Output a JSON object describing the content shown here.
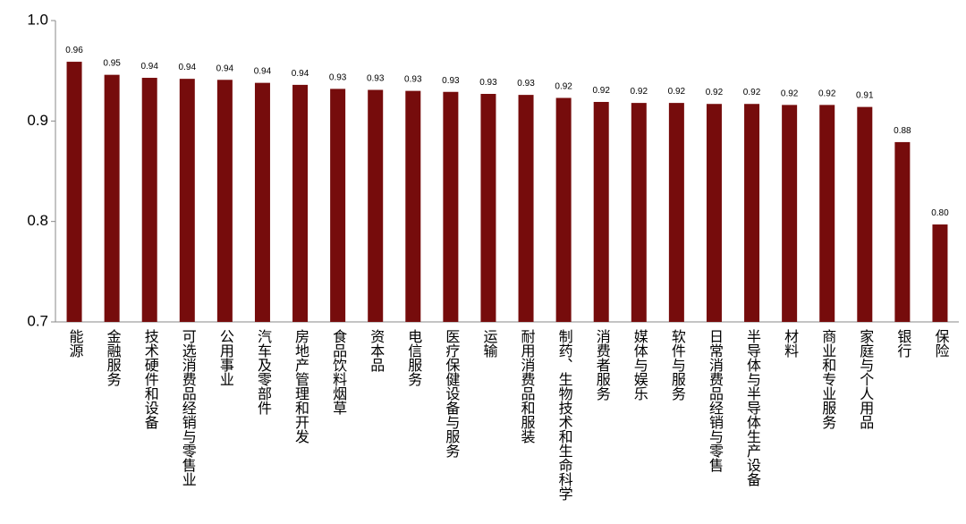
{
  "chart_data": {
    "type": "bar",
    "categories": [
      "能源",
      "金融服务",
      "技术硬件和设备",
      "可选消费品经销与零售业",
      "公用事业",
      "汽车及零部件",
      "房地产管理和开发",
      "食品饮料烟草",
      "资本品",
      "电信服务",
      "医疗保健设备与服务",
      "运输",
      "耐用消费品和服装",
      "制药、生物技术和生命科学",
      "消费者服务",
      "媒体与娱乐",
      "软件与服务",
      "日常消费品经销与零售",
      "半导体与半导体生产设备",
      "材料",
      "商业和专业服务",
      "家庭与个人用品",
      "银行",
      "保险"
    ],
    "values": [
      0.959,
      0.946,
      0.943,
      0.942,
      0.941,
      0.938,
      0.936,
      0.932,
      0.931,
      0.93,
      0.929,
      0.927,
      0.926,
      0.923,
      0.919,
      0.918,
      0.918,
      0.917,
      0.917,
      0.916,
      0.916,
      0.914,
      0.879,
      0.797
    ],
    "value_labels": [
      "0.96",
      "0.95",
      "0.94",
      "0.94",
      "0.94",
      "0.94",
      "0.94",
      "0.93",
      "0.93",
      "0.93",
      "0.93",
      "0.93",
      "0.93",
      "0.92",
      "0.92",
      "0.92",
      "0.92",
      "0.92",
      "0.92",
      "0.92",
      "0.92",
      "0.91",
      "0.88",
      "0.80"
    ],
    "color": "#760c0c",
    "ylim": [
      0.7,
      1.0
    ],
    "yticks": [
      {
        "value": 0.7,
        "label": "0.7"
      },
      {
        "value": 0.8,
        "label": "0.8"
      },
      {
        "value": 0.9,
        "label": "0.9"
      },
      {
        "value": 1.0,
        "label": "1.0"
      }
    ],
    "grid": false
  }
}
